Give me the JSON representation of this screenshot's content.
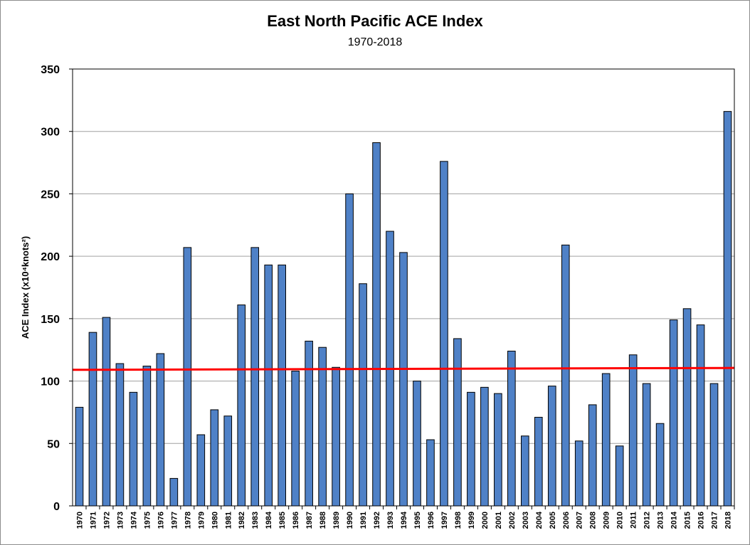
{
  "chart_data": {
    "type": "bar",
    "title": "East North Pacific ACE Index",
    "subtitle": "1970-2018",
    "xlabel": "",
    "ylabel": "ACE Index (x10⁴knots²)",
    "ylim": [
      0,
      350
    ],
    "yticks": [
      0,
      50,
      100,
      150,
      200,
      250,
      300,
      350
    ],
    "grid": true,
    "categories": [
      "1970",
      "1971",
      "1972",
      "1973",
      "1974",
      "1975",
      "1976",
      "1977",
      "1978",
      "1979",
      "1980",
      "1981",
      "1982",
      "1983",
      "1984",
      "1985",
      "1986",
      "1987",
      "1988",
      "1989",
      "1990",
      "1991",
      "1992",
      "1993",
      "1994",
      "1995",
      "1996",
      "1997",
      "1998",
      "1999",
      "2000",
      "2001",
      "2002",
      "2003",
      "2004",
      "2005",
      "2006",
      "2007",
      "2008",
      "2009",
      "2010",
      "2011",
      "2012",
      "2013",
      "2014",
      "2015",
      "2016",
      "2017",
      "2018"
    ],
    "values": [
      79,
      139,
      151,
      114,
      91,
      112,
      122,
      22,
      207,
      57,
      77,
      72,
      161,
      207,
      193,
      193,
      108,
      132,
      127,
      111,
      250,
      178,
      291,
      220,
      203,
      100,
      53,
      276,
      134,
      91,
      95,
      90,
      124,
      56,
      71,
      96,
      209,
      52,
      81,
      106,
      48,
      121,
      98,
      66,
      149,
      158,
      145,
      98,
      316
    ],
    "trendline": {
      "start": 109,
      "end": 110.5
    },
    "colors": {
      "bar": "#4f81c7",
      "bar_edge": "#000000",
      "trend": "#ff0000",
      "grid": "#a0a0a0"
    }
  }
}
